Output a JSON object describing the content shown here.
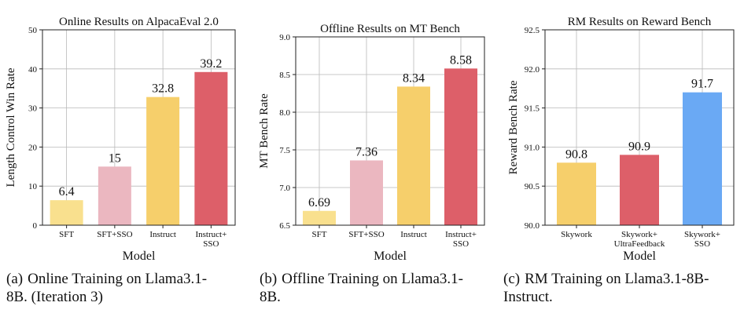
{
  "chart_data": [
    {
      "type": "bar",
      "title": "Online Results on AlpacaEval 2.0",
      "xlabel": "Model",
      "ylabel": "Length Control Win Rate",
      "ylim": [
        0,
        50
      ],
      "yticks": [
        "0",
        "10",
        "20",
        "30",
        "40",
        "50"
      ],
      "ytick_values": [
        0,
        10,
        20,
        30,
        40,
        50
      ],
      "grid": true,
      "categories": [
        [
          "SFT"
        ],
        [
          "SFT+SSO"
        ],
        [
          "Instruct"
        ],
        [
          "Instruct+",
          "SSO"
        ]
      ],
      "values": [
        6.4,
        15,
        32.8,
        39.2
      ],
      "value_labels": [
        "6.4",
        "15",
        "32.8",
        "39.2"
      ],
      "colors": [
        "#f9e08e",
        "#ebb7c0",
        "#f6cf6b",
        "#dd5f69"
      ]
    },
    {
      "type": "bar",
      "title": "Offline Results on MT Bench",
      "xlabel": "Model",
      "ylabel": "MT Bench Rate",
      "ylim": [
        6.5,
        9.0
      ],
      "yticks": [
        "6.5",
        "7.0",
        "7.5",
        "8.0",
        "8.5",
        "9.0"
      ],
      "ytick_values": [
        6.5,
        7.0,
        7.5,
        8.0,
        8.5,
        9.0
      ],
      "grid": true,
      "categories": [
        [
          "SFT"
        ],
        [
          "SFT+SSO"
        ],
        [
          "Instruct"
        ],
        [
          "Instruct+",
          "SSO"
        ]
      ],
      "values": [
        6.69,
        7.36,
        8.34,
        8.58
      ],
      "value_labels": [
        "6.69",
        "7.36",
        "8.34",
        "8.58"
      ],
      "colors": [
        "#f9e08e",
        "#ebb7c0",
        "#f6cf6b",
        "#dd5f69"
      ]
    },
    {
      "type": "bar",
      "title": "RM Results on Reward Bench",
      "xlabel": "Model",
      "ylabel": "Reward Bench Rate",
      "ylim": [
        90.0,
        92.5
      ],
      "yticks": [
        "90.0",
        "90.5",
        "91.0",
        "91.5",
        "92.0",
        "92.5"
      ],
      "ytick_values": [
        90.0,
        90.5,
        91.0,
        91.5,
        92.0,
        92.5
      ],
      "grid": true,
      "categories": [
        [
          "Skywork"
        ],
        [
          "Skywork+",
          "UltraFeedback"
        ],
        [
          "Skywork+",
          "SSO"
        ]
      ],
      "values": [
        90.8,
        90.9,
        91.7
      ],
      "value_labels": [
        "90.8",
        "90.9",
        "91.7"
      ],
      "colors": [
        "#f6cf6b",
        "#dd5f69",
        "#6aa9f4"
      ]
    }
  ],
  "captions": [
    {
      "label": "(a)",
      "lines": [
        "Online Training on Llama3.1-",
        "8B. (Iteration 3)"
      ]
    },
    {
      "label": "(b)",
      "lines": [
        "Offline Training on Llama3.1-",
        "8B."
      ]
    },
    {
      "label": "(c)",
      "lines": [
        "RM Training on Llama3.1-8B-",
        "Instruct."
      ]
    }
  ]
}
